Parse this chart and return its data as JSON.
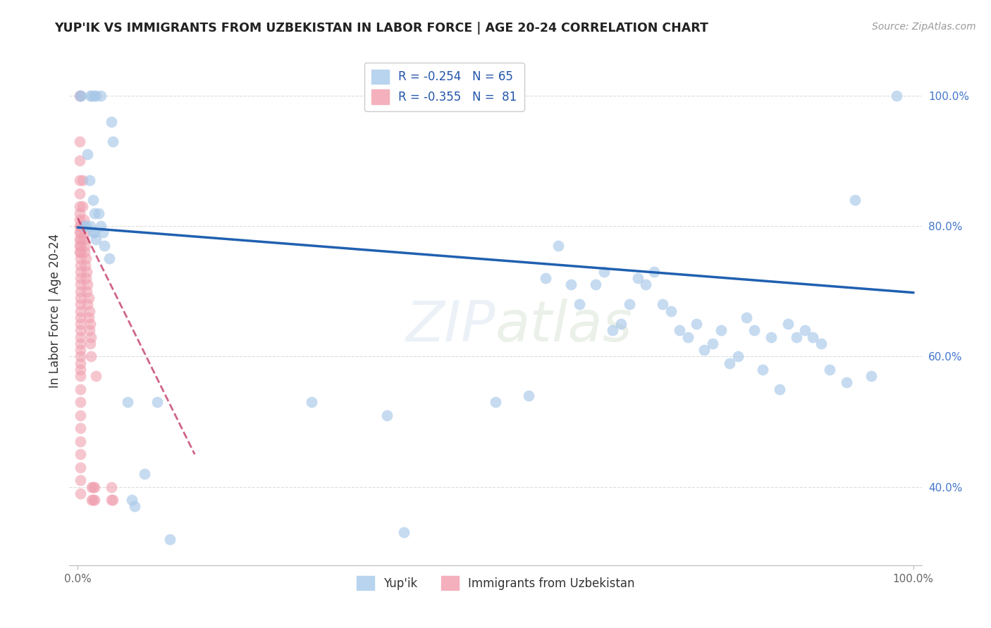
{
  "title": "YUP'IK VS IMMIGRANTS FROM UZBEKISTAN IN LABOR FORCE | AGE 20-24 CORRELATION CHART",
  "source": "Source: ZipAtlas.com",
  "ylabel_label": "In Labor Force | Age 20-24",
  "bottom_legend": [
    "Yup'ik",
    "Immigrants from Uzbekistan"
  ],
  "blue_color": "#a8c8e8",
  "pink_color": "#f0a0b0",
  "trend_blue": "#2060b0",
  "trend_pink": "#c03060",
  "blue_scatter": [
    [
      0.003,
      1.0
    ],
    [
      0.003,
      1.0
    ],
    [
      0.015,
      1.0
    ],
    [
      0.017,
      1.0
    ],
    [
      0.02,
      1.0
    ],
    [
      0.022,
      1.0
    ],
    [
      0.028,
      1.0
    ],
    [
      0.04,
      0.96
    ],
    [
      0.042,
      0.93
    ],
    [
      0.012,
      0.91
    ],
    [
      0.014,
      0.87
    ],
    [
      0.018,
      0.84
    ],
    [
      0.02,
      0.82
    ],
    [
      0.008,
      0.8
    ],
    [
      0.01,
      0.8
    ],
    [
      0.015,
      0.8
    ],
    [
      0.018,
      0.79
    ],
    [
      0.02,
      0.79
    ],
    [
      0.022,
      0.78
    ],
    [
      0.025,
      0.82
    ],
    [
      0.028,
      0.8
    ],
    [
      0.03,
      0.79
    ],
    [
      0.032,
      0.77
    ],
    [
      0.038,
      0.75
    ],
    [
      0.06,
      0.53
    ],
    [
      0.065,
      0.38
    ],
    [
      0.068,
      0.37
    ],
    [
      0.08,
      0.42
    ],
    [
      0.095,
      0.53
    ],
    [
      0.11,
      0.32
    ],
    [
      0.28,
      0.53
    ],
    [
      0.37,
      0.51
    ],
    [
      0.39,
      0.33
    ],
    [
      0.5,
      0.53
    ],
    [
      0.54,
      0.54
    ],
    [
      0.56,
      0.72
    ],
    [
      0.575,
      0.77
    ],
    [
      0.59,
      0.71
    ],
    [
      0.6,
      0.68
    ],
    [
      0.62,
      0.71
    ],
    [
      0.63,
      0.73
    ],
    [
      0.64,
      0.64
    ],
    [
      0.65,
      0.65
    ],
    [
      0.66,
      0.68
    ],
    [
      0.67,
      0.72
    ],
    [
      0.68,
      0.71
    ],
    [
      0.69,
      0.73
    ],
    [
      0.7,
      0.68
    ],
    [
      0.71,
      0.67
    ],
    [
      0.72,
      0.64
    ],
    [
      0.73,
      0.63
    ],
    [
      0.74,
      0.65
    ],
    [
      0.75,
      0.61
    ],
    [
      0.76,
      0.62
    ],
    [
      0.77,
      0.64
    ],
    [
      0.78,
      0.59
    ],
    [
      0.79,
      0.6
    ],
    [
      0.8,
      0.66
    ],
    [
      0.81,
      0.64
    ],
    [
      0.82,
      0.58
    ],
    [
      0.83,
      0.63
    ],
    [
      0.84,
      0.55
    ],
    [
      0.85,
      0.65
    ],
    [
      0.86,
      0.63
    ],
    [
      0.87,
      0.64
    ],
    [
      0.88,
      0.63
    ],
    [
      0.89,
      0.62
    ],
    [
      0.9,
      0.58
    ],
    [
      0.92,
      0.56
    ],
    [
      0.93,
      0.84
    ],
    [
      0.95,
      0.57
    ],
    [
      0.98,
      1.0
    ]
  ],
  "pink_scatter": [
    [
      0.002,
      1.0
    ],
    [
      0.003,
      1.0
    ],
    [
      0.002,
      0.93
    ],
    [
      0.002,
      0.9
    ],
    [
      0.002,
      0.87
    ],
    [
      0.002,
      0.85
    ],
    [
      0.002,
      0.83
    ],
    [
      0.002,
      0.82
    ],
    [
      0.002,
      0.81
    ],
    [
      0.002,
      0.8
    ],
    [
      0.002,
      0.79
    ],
    [
      0.002,
      0.78
    ],
    [
      0.002,
      0.77
    ],
    [
      0.002,
      0.76
    ],
    [
      0.003,
      0.8
    ],
    [
      0.003,
      0.79
    ],
    [
      0.003,
      0.78
    ],
    [
      0.003,
      0.77
    ],
    [
      0.003,
      0.76
    ],
    [
      0.003,
      0.75
    ],
    [
      0.003,
      0.74
    ],
    [
      0.003,
      0.73
    ],
    [
      0.003,
      0.72
    ],
    [
      0.003,
      0.71
    ],
    [
      0.003,
      0.7
    ],
    [
      0.003,
      0.69
    ],
    [
      0.003,
      0.68
    ],
    [
      0.003,
      0.67
    ],
    [
      0.003,
      0.66
    ],
    [
      0.003,
      0.65
    ],
    [
      0.003,
      0.64
    ],
    [
      0.003,
      0.63
    ],
    [
      0.003,
      0.62
    ],
    [
      0.003,
      0.61
    ],
    [
      0.003,
      0.6
    ],
    [
      0.003,
      0.59
    ],
    [
      0.003,
      0.58
    ],
    [
      0.003,
      0.57
    ],
    [
      0.003,
      0.55
    ],
    [
      0.003,
      0.53
    ],
    [
      0.003,
      0.51
    ],
    [
      0.003,
      0.49
    ],
    [
      0.003,
      0.47
    ],
    [
      0.003,
      0.45
    ],
    [
      0.003,
      0.43
    ],
    [
      0.003,
      0.41
    ],
    [
      0.003,
      0.39
    ],
    [
      0.006,
      0.87
    ],
    [
      0.006,
      0.83
    ],
    [
      0.007,
      0.81
    ],
    [
      0.007,
      0.78
    ],
    [
      0.008,
      0.79
    ],
    [
      0.008,
      0.76
    ],
    [
      0.009,
      0.77
    ],
    [
      0.009,
      0.74
    ],
    [
      0.01,
      0.75
    ],
    [
      0.01,
      0.72
    ],
    [
      0.011,
      0.73
    ],
    [
      0.011,
      0.7
    ],
    [
      0.012,
      0.71
    ],
    [
      0.012,
      0.68
    ],
    [
      0.013,
      0.69
    ],
    [
      0.013,
      0.66
    ],
    [
      0.014,
      0.67
    ],
    [
      0.014,
      0.64
    ],
    [
      0.015,
      0.65
    ],
    [
      0.015,
      0.62
    ],
    [
      0.016,
      0.63
    ],
    [
      0.016,
      0.6
    ],
    [
      0.017,
      0.4
    ],
    [
      0.017,
      0.38
    ],
    [
      0.018,
      0.4
    ],
    [
      0.018,
      0.38
    ],
    [
      0.02,
      0.4
    ],
    [
      0.02,
      0.38
    ],
    [
      0.022,
      0.57
    ],
    [
      0.04,
      0.4
    ],
    [
      0.04,
      0.38
    ],
    [
      0.042,
      0.38
    ]
  ],
  "xlim": [
    -0.01,
    1.01
  ],
  "ylim": [
    0.28,
    1.06
  ],
  "blue_trend_x": [
    0.0,
    1.0
  ],
  "blue_trend_y": [
    0.798,
    0.698
  ],
  "pink_trend_x": [
    0.0,
    0.14
  ],
  "pink_trend_y": [
    0.812,
    0.45
  ],
  "background": "#ffffff",
  "grid_color": "#dddddd"
}
